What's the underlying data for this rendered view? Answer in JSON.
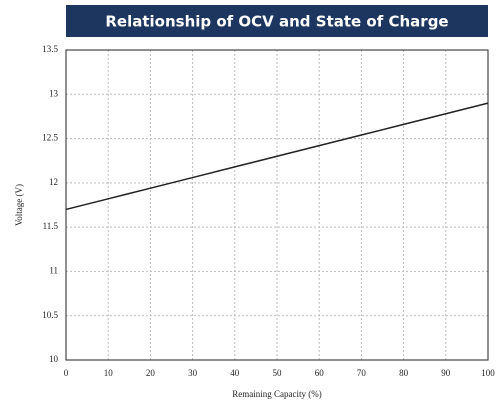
{
  "chart_data": {
    "type": "line",
    "title": "Relationship of OCV and State of Charge",
    "xlabel": "Remaining Capacity (%)",
    "ylabel": "Voltage (V)",
    "x": [
      0,
      10,
      20,
      30,
      40,
      50,
      60,
      70,
      80,
      90,
      100
    ],
    "series": [
      {
        "name": "OCV",
        "color": "#222222",
        "values": [
          11.7,
          11.82,
          11.94,
          12.06,
          12.18,
          12.3,
          12.42,
          12.54,
          12.66,
          12.78,
          12.9
        ]
      }
    ],
    "xlim": [
      0,
      100
    ],
    "xticks": [
      0,
      10,
      20,
      30,
      40,
      50,
      60,
      70,
      80,
      90,
      100
    ],
    "ylim": [
      10,
      13.5
    ],
    "yticks": [
      10,
      10.5,
      11,
      11.5,
      12,
      12.5,
      13,
      13.5
    ],
    "grid": true,
    "legend": false
  }
}
